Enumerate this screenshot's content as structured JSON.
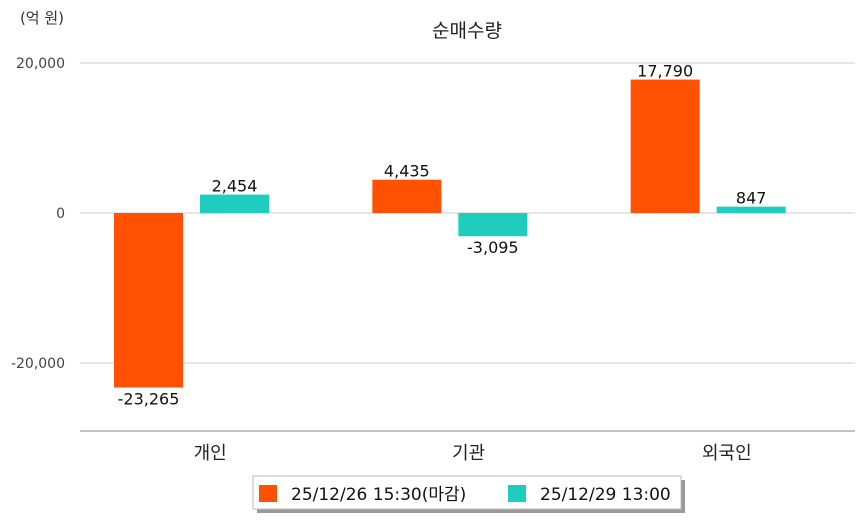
{
  "chart_data": {
    "type": "bar",
    "title": "순매수량",
    "unit_label": "(억 원)",
    "categories": [
      "개인",
      "기관",
      "외국인"
    ],
    "series": [
      {
        "name": "25/12/26 15:30(마감)",
        "color": "#ff5100",
        "values": [
          -23265,
          4435,
          17790
        ],
        "labels": [
          "-23,265",
          "4,435",
          "17,790"
        ]
      },
      {
        "name": "25/12/29 13:00",
        "color": "#1ecdbd",
        "values": [
          2454,
          -3095,
          847
        ],
        "labels": [
          "2,454",
          "-3,095",
          "847"
        ]
      }
    ],
    "yticks": [
      20000,
      0,
      -20000
    ],
    "ytick_labels": [
      "20,000",
      "0",
      "-20,000"
    ],
    "ylim": [
      -29000,
      23000
    ],
    "grid": true,
    "legend_position": "bottom"
  }
}
